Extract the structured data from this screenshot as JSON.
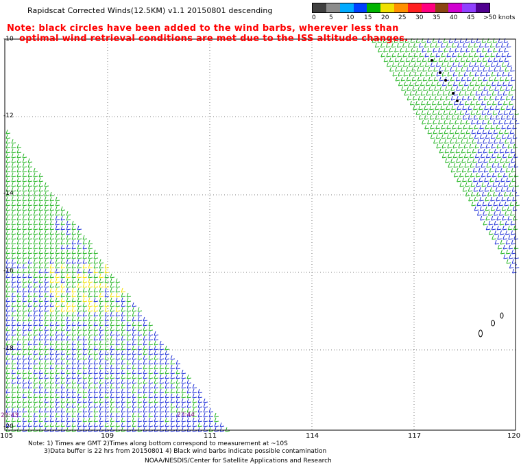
{
  "header": {
    "title": "Rapidscat Corrected Winds(12.5KM) v1.1 20150801 descending",
    "note_line1": "Note: black circles have been added to the wind barbs, wherever less than",
    "note_line2": "optimal wind retrieval conditions are met due to the ISS altitude changes."
  },
  "legend": {
    "colors": [
      "#404040",
      "#8c8c8c",
      "#00aaff",
      "#0040ff",
      "#00b400",
      "#f0e000",
      "#ff9000",
      "#ff2020",
      "#ff0080",
      "#8b4513",
      "#d000d0",
      "#9040ff",
      "#500090"
    ],
    "labels": [
      "0",
      "5",
      "10",
      "15",
      "20",
      "25",
      "30",
      "35",
      "40",
      "45",
      ">50 knots"
    ]
  },
  "map": {
    "lat_labels": [
      "-10",
      "-12",
      "-14",
      "-16",
      "-18",
      "-20"
    ],
    "lon_labels": [
      "105",
      "109",
      "111",
      "114",
      "117",
      "120"
    ],
    "time_labels": [
      "23:43",
      "23:44"
    ]
  },
  "footer": {
    "line1": "Note: 1) Times are GMT 2)Times along bottom correspond to measurement at ~10S",
    "line2": "3)Data buffer is 22 hrs from 20150801 4) Black wind barbs indicate possible contamination",
    "line3": "NOAA/NESDIS/Center for Satellite Applications and Research"
  }
}
